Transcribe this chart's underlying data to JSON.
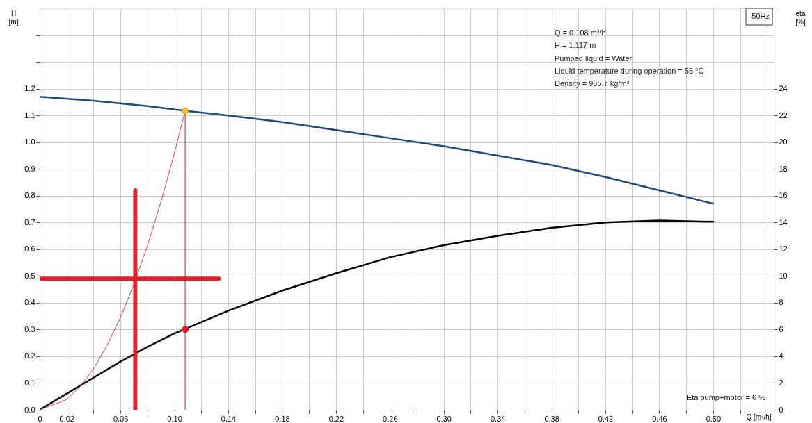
{
  "chart_data": {
    "type": "line",
    "ylabel": "H [m]",
    "y2label": "eta [%]",
    "xlabel": "Q [m³/h]",
    "annotations": [
      "50Hz",
      "Q = 0.108 m³/h",
      "H = 1.117 m",
      "Pumped liquid = Water",
      "Liquid temperature during operation = 55 °C",
      "Density = 985.7 kg/m³",
      "Eta pump+motor = 6 %"
    ],
    "xlim": [
      0,
      0.545
    ],
    "ylim": [
      0,
      1.5
    ],
    "y2lim": [
      0,
      30
    ],
    "xticks": [
      {
        "value": 0,
        "label": "0"
      },
      0.02,
      {
        "value": 0.04,
        "label": null
      },
      {
        "value": 0.06,
        "label": "0.06"
      },
      {
        "value": 0.08,
        "label": null
      },
      {
        "value": 0.1,
        "label": "0.10"
      },
      {
        "value": 0.12,
        "label": null
      },
      0.14,
      {
        "value": 0.16,
        "label": null
      },
      0.18,
      {
        "value": 0.2,
        "label": null
      },
      0.22,
      {
        "value": 0.24,
        "label": null
      },
      0.26,
      {
        "value": 0.28,
        "label": null
      },
      {
        "value": 0.3,
        "label": "0.30"
      },
      {
        "value": 0.32,
        "label": null
      },
      0.34,
      {
        "value": 0.36,
        "label": null
      },
      0.38,
      {
        "value": 0.4,
        "label": null
      },
      0.42,
      {
        "value": 0.44,
        "label": null
      },
      0.46,
      {
        "value": 0.48,
        "label": null
      },
      {
        "value": 0.5,
        "label": "0.50"
      },
      {
        "value": 0.52,
        "label": null
      },
      {
        "value": 0.54,
        "label": null
      }
    ],
    "yticks": [
      {
        "value": 0,
        "label": "0.0"
      },
      0.1,
      0.2,
      0.3,
      0.4,
      0.5,
      0.6,
      0.7,
      0.8,
      0.9,
      {
        "value": 1,
        "label": "1.0"
      },
      1.1,
      1.2,
      {
        "value": 1.3,
        "label": null
      },
      {
        "value": 1.4,
        "label": null
      }
    ],
    "y2ticks": [
      0,
      2,
      4,
      6,
      8,
      10,
      12,
      14,
      16,
      18,
      20,
      22,
      24
    ],
    "grid": true,
    "series": [
      {
        "color": "#1f4a7a",
        "x": [
          0,
          0.04,
          0.08,
          0.108,
          0.14,
          0.18,
          0.22,
          0.26,
          0.3,
          0.34,
          0.38,
          0.42,
          0.46,
          0.5
        ],
        "values": [
          1.17,
          1.155,
          1.135,
          1.117,
          1.1,
          1.075,
          1.045,
          1.015,
          0.985,
          0.95,
          0.915,
          0.87,
          0.82,
          0.77
        ]
      },
      {
        "axis": "y2",
        "color": "#000000",
        "x": [
          0,
          0.02,
          0.04,
          0.06,
          0.08,
          0.1,
          0.14,
          0.18,
          0.22,
          0.26,
          0.3,
          0.34,
          0.38,
          0.42,
          0.46,
          0.5
        ],
        "values": [
          0,
          1.2,
          2.4,
          3.6,
          4.7,
          5.7,
          7.4,
          8.9,
          10.2,
          11.4,
          12.3,
          13.0,
          13.6,
          14.0,
          14.15,
          14.05
        ]
      },
      {
        "color": "#d9434a",
        "x": [
          0,
          0.02,
          0.03,
          0.04,
          0.05,
          0.06,
          0.07,
          0.08,
          0.09,
          0.1,
          0.108
        ],
        "values": [
          0,
          0.038,
          0.086,
          0.153,
          0.24,
          0.345,
          0.47,
          0.613,
          0.776,
          0.958,
          1.117
        ]
      },
      {
        "color": "#c0202a",
        "x": [
          0.108,
          0.108
        ],
        "values": [
          0,
          1.117
        ]
      },
      {
        "color": "#e0202a",
        "x": [
          0.071,
          0.071
        ],
        "values": [
          0.82,
          0
        ]
      },
      {
        "color": "#e0202a",
        "x": [
          0,
          0.133
        ],
        "values": [
          0.49,
          0.49
        ]
      },
      {
        "type": "scatter",
        "color": "#f5c242",
        "x": [
          0.108
        ],
        "values": [
          1.117
        ]
      },
      {
        "type": "scatter",
        "axis": "y2",
        "color": "#e0202a",
        "x": [
          0.108
        ],
        "values": [
          6
        ]
      }
    ]
  }
}
